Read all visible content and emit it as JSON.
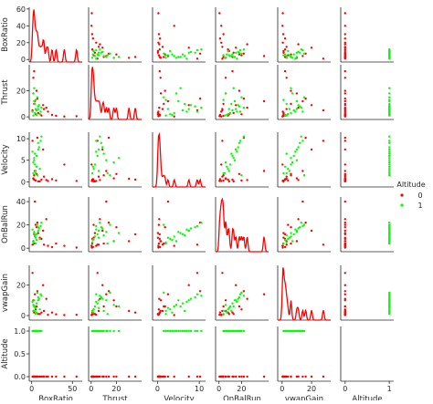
{
  "chart_data": {
    "type": "scatter",
    "variables": [
      "BoxRatio",
      "Thrust",
      "Velocity",
      "OnBalRun",
      "vwapGain",
      "Altitude"
    ],
    "hue": {
      "name": "Altitude",
      "levels": [
        {
          "label": "0",
          "color": "#ff0000"
        },
        {
          "label": "1",
          "color": "#00ff00"
        }
      ]
    },
    "legend_position": "right",
    "grid": false,
    "axis_ticks": {
      "BoxRatio": [
        0,
        50
      ],
      "Thrust": [
        0,
        20
      ],
      "Velocity": [
        0,
        10
      ],
      "OnBalRun": [
        0,
        20
      ],
      "vwapGain": [
        0,
        20
      ],
      "Altitude": [
        0,
        1
      ]
    },
    "y_ticks": {
      "BoxRatio": [
        0,
        20,
        40,
        60
      ],
      "Thrust": [
        0,
        20
      ],
      "Velocity": [
        0,
        5,
        10
      ],
      "OnBalRun": [
        0,
        20,
        40
      ],
      "vwapGain": [
        0,
        20
      ],
      "Altitude": [
        0.0,
        0.5,
        1.0
      ]
    },
    "ranges": {
      "BoxRatio": [
        -3,
        62
      ],
      "Thrust": [
        -2,
        40
      ],
      "Velocity": [
        -1.2,
        11.5
      ],
      "OnBalRun": [
        -3,
        44
      ],
      "vwapGain": [
        -3,
        33
      ],
      "Altitude": [
        -0.1,
        1.1
      ]
    },
    "points": [
      {
        "BoxRatio": 2,
        "Thrust": 18,
        "Velocity": 0.8,
        "OnBalRun": 6,
        "vwapGain": 10,
        "Altitude": 0
      },
      {
        "BoxRatio": 3,
        "Thrust": 10,
        "Velocity": 1.5,
        "OnBalRun": 4,
        "vwapGain": 6,
        "Altitude": 0
      },
      {
        "BoxRatio": 5,
        "Thrust": 2,
        "Velocity": 0.3,
        "OnBalRun": 20,
        "vwapGain": 4,
        "Altitude": 0
      },
      {
        "BoxRatio": 8,
        "Thrust": 3,
        "Velocity": 0.1,
        "OnBalRun": 13,
        "vwapGain": 1,
        "Altitude": 0
      },
      {
        "BoxRatio": 12,
        "Thrust": 1,
        "Velocity": 0.5,
        "OnBalRun": 8,
        "vwapGain": 2,
        "Altitude": 0
      },
      {
        "BoxRatio": 15,
        "Thrust": 6,
        "Velocity": 1.2,
        "OnBalRun": 3,
        "vwapGain": 3,
        "Altitude": 0
      },
      {
        "BoxRatio": 20,
        "Thrust": 4,
        "Velocity": 0.2,
        "OnBalRun": 2,
        "vwapGain": 0.5,
        "Altitude": 0
      },
      {
        "BoxRatio": 25,
        "Thrust": 1.5,
        "Velocity": 0.6,
        "OnBalRun": 1,
        "vwapGain": 2,
        "Altitude": 0
      },
      {
        "BoxRatio": 55,
        "Thrust": 0.5,
        "Velocity": 0.2,
        "OnBalRun": 0.5,
        "vwapGain": 0.5,
        "Altitude": 0
      },
      {
        "BoxRatio": 2,
        "Thrust": 30,
        "Velocity": 0.7,
        "OnBalRun": 6,
        "vwapGain": 3,
        "Altitude": 0
      },
      {
        "BoxRatio": 1,
        "Thrust": 5,
        "Velocity": 9.5,
        "OnBalRun": 3,
        "vwapGain": 28,
        "Altitude": 0
      },
      {
        "BoxRatio": 18,
        "Thrust": 7,
        "Velocity": 0.4,
        "OnBalRun": 25,
        "vwapGain": 11,
        "Altitude": 0
      },
      {
        "BoxRatio": 4,
        "Thrust": 12,
        "Velocity": 2.5,
        "OnBalRun": 40,
        "vwapGain": 14,
        "Altitude": 0
      },
      {
        "BoxRatio": 6,
        "Thrust": 20,
        "Velocity": 1.8,
        "OnBalRun": 18,
        "vwapGain": 6,
        "Altitude": 0
      },
      {
        "BoxRatio": 10,
        "Thrust": 2,
        "Velocity": 0.1,
        "OnBalRun": 9,
        "vwapGain": 1,
        "Altitude": 0
      },
      {
        "BoxRatio": 30,
        "Thrust": 0.8,
        "Velocity": 0.3,
        "OnBalRun": 4,
        "vwapGain": 0.8,
        "Altitude": 0
      },
      {
        "BoxRatio": 7,
        "Thrust": 14,
        "Velocity": 10.2,
        "OnBalRun": 22,
        "vwapGain": 16,
        "Altitude": 0
      },
      {
        "BoxRatio": 3,
        "Thrust": 35,
        "Velocity": 0.5,
        "OnBalRun": 12,
        "vwapGain": 2,
        "Altitude": 0
      },
      {
        "BoxRatio": 40,
        "Thrust": 0.3,
        "Velocity": 4.0,
        "OnBalRun": 2,
        "vwapGain": 0.3,
        "Altitude": 0
      },
      {
        "BoxRatio": 14,
        "Thrust": 9,
        "Velocity": 7.5,
        "OnBalRun": 15,
        "vwapGain": 20,
        "Altitude": 0
      },
      {
        "BoxRatio": 2,
        "Thrust": 1,
        "Velocity": 2,
        "OnBalRun": 5,
        "vwapGain": 3,
        "Altitude": 1
      },
      {
        "BoxRatio": 4,
        "Thrust": 3,
        "Velocity": 4,
        "OnBalRun": 10,
        "vwapGain": 6,
        "Altitude": 1
      },
      {
        "BoxRatio": 6,
        "Thrust": 5,
        "Velocity": 6,
        "OnBalRun": 12,
        "vwapGain": 8,
        "Altitude": 1
      },
      {
        "BoxRatio": 8,
        "Thrust": 8,
        "Velocity": 9,
        "OnBalRun": 18,
        "vwapGain": 12,
        "Altitude": 1
      },
      {
        "BoxRatio": 10,
        "Thrust": 2,
        "Velocity": 3,
        "OnBalRun": 8,
        "vwapGain": 4,
        "Altitude": 1
      },
      {
        "BoxRatio": 3,
        "Thrust": 12,
        "Velocity": 5,
        "OnBalRun": 14,
        "vwapGain": 10,
        "Altitude": 1
      },
      {
        "BoxRatio": 5,
        "Thrust": 6,
        "Velocity": 2.5,
        "OnBalRun": 9,
        "vwapGain": 5,
        "Altitude": 1
      },
      {
        "BoxRatio": 7,
        "Thrust": 15,
        "Velocity": 1.5,
        "OnBalRun": 20,
        "vwapGain": 15,
        "Altitude": 1
      },
      {
        "BoxRatio": 1,
        "Thrust": 4,
        "Velocity": 7,
        "OnBalRun": 16,
        "vwapGain": 9,
        "Altitude": 1
      },
      {
        "BoxRatio": 9,
        "Thrust": 9,
        "Velocity": 8,
        "OnBalRun": 17,
        "vwapGain": 11,
        "Altitude": 1
      },
      {
        "BoxRatio": 12,
        "Thrust": 7,
        "Velocity": 10.5,
        "OnBalRun": 22,
        "vwapGain": 13,
        "Altitude": 1
      },
      {
        "BoxRatio": 2,
        "Thrust": 18,
        "Velocity": 4.5,
        "OnBalRun": 6,
        "vwapGain": 7,
        "Altitude": 1
      },
      {
        "BoxRatio": 4,
        "Thrust": 10,
        "Velocity": 6.5,
        "OnBalRun": 11,
        "vwapGain": 3,
        "Altitude": 1
      },
      {
        "BoxRatio": 6,
        "Thrust": 1.5,
        "Velocity": 3.5,
        "OnBalRun": 7,
        "vwapGain": 2,
        "Altitude": 1
      },
      {
        "BoxRatio": 3,
        "Thrust": 22,
        "Velocity": 5.5,
        "OnBalRun": 13,
        "vwapGain": 6,
        "Altitude": 1
      },
      {
        "BoxRatio": 11,
        "Thrust": 4,
        "Velocity": 9.5,
        "OnBalRun": 19,
        "vwapGain": 14,
        "Altitude": 1
      },
      {
        "BoxRatio": 5,
        "Thrust": 13,
        "Velocity": 2,
        "OnBalRun": 4,
        "vwapGain": 1,
        "Altitude": 1
      },
      {
        "BoxRatio": 8,
        "Thrust": 6,
        "Velocity": 7.5,
        "OnBalRun": 15,
        "vwapGain": 10,
        "Altitude": 1
      }
    ]
  }
}
